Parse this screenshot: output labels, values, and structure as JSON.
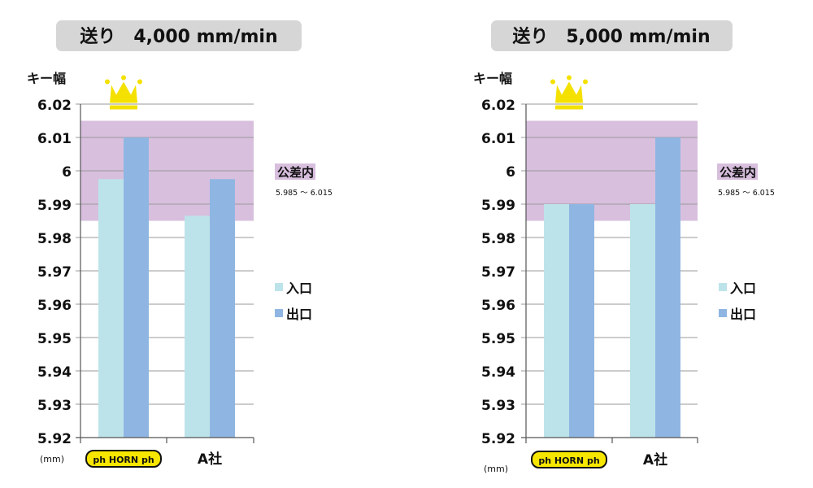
{
  "colors": {
    "entry": "#bde3ea",
    "exit": "#8fb6e2",
    "tolerance_band": "#d8bfde",
    "title_bg": "#d6d6d6",
    "crown": "#f4e100",
    "horn_logo_bg": "#f7e600"
  },
  "legend": {
    "entry_label": "入口",
    "exit_label": "出口"
  },
  "tolerance": {
    "label": "公差内",
    "range_text": "5.985 ～ 6.015"
  },
  "brand_logo": {
    "text": "ph HORN ph"
  },
  "chart_data": [
    {
      "type": "bar",
      "title": "送り　4,000 mm/min",
      "ylabel": "キー幅",
      "unit": "(mm)",
      "ylim": [
        5.92,
        6.02
      ],
      "yticks": [
        6.02,
        6.01,
        6,
        5.99,
        5.98,
        5.97,
        5.96,
        5.95,
        5.94,
        5.93,
        5.92
      ],
      "categories": [
        "HORN",
        "A社"
      ],
      "series": [
        {
          "name": "入口",
          "values": [
            5.9975,
            5.9865
          ]
        },
        {
          "name": "出口",
          "values": [
            6.01,
            5.9975
          ]
        }
      ],
      "tolerance_band": [
        5.985,
        6.015
      ],
      "crown_over": "HORN"
    },
    {
      "type": "bar",
      "title": "送り　5,000 mm/min",
      "ylabel": "キー幅",
      "unit": "(mm)",
      "ylim": [
        5.92,
        6.02
      ],
      "yticks": [
        6.02,
        6.01,
        6,
        5.99,
        5.98,
        5.97,
        5.96,
        5.95,
        5.94,
        5.93,
        5.92
      ],
      "categories": [
        "HORN",
        "A社"
      ],
      "series": [
        {
          "name": "入口",
          "values": [
            5.99,
            5.99
          ]
        },
        {
          "name": "出口",
          "values": [
            5.99,
            6.01
          ]
        }
      ],
      "tolerance_band": [
        5.985,
        6.015
      ],
      "crown_over": "HORN"
    }
  ]
}
